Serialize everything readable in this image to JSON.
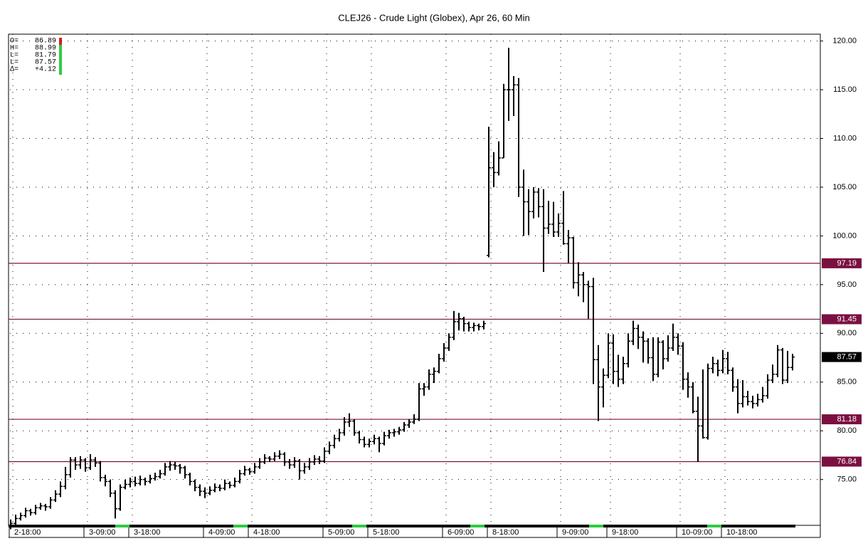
{
  "chart_data": {
    "type": "ohlc",
    "title": "CLEJ26 - Crude Light (Globex), Apr 26, 60 Min",
    "info": [
      {
        "label": "O=",
        "value": "86.89"
      },
      {
        "label": "H=",
        "value": "88.99"
      },
      {
        "label": "L=",
        "value": "81.79"
      },
      {
        "label": "L=",
        "value": "87.57"
      },
      {
        "label": "Δ=",
        "value": "+4.12"
      }
    ],
    "ylim": [
      70.3,
      120.7
    ],
    "yticks": [
      {
        "value": 120,
        "label": "120.00"
      },
      {
        "value": 115,
        "label": "115.00"
      },
      {
        "value": 110,
        "label": "110.00"
      },
      {
        "value": 105,
        "label": "105.00"
      },
      {
        "value": 100,
        "label": "100.00"
      },
      {
        "value": 95,
        "label": "95.00"
      },
      {
        "value": 90,
        "label": "90.00"
      },
      {
        "value": 85,
        "label": "85.00"
      },
      {
        "value": 80,
        "label": "80.00"
      },
      {
        "value": 75,
        "label": "75.00"
      }
    ],
    "grid": true,
    "color": "#000000",
    "levels": [
      97.19,
      91.45,
      81.18,
      76.84
    ],
    "level_color": "#7b1040",
    "last_price": 87.57,
    "categories": [
      "2-18:00",
      null,
      null,
      null,
      null,
      null,
      null,
      null,
      null,
      null,
      null,
      null,
      null,
      null,
      null,
      "3-09:00",
      null,
      null,
      null,
      null,
      null,
      null,
      null,
      null,
      "3-18:00",
      null,
      null,
      null,
      null,
      null,
      null,
      null,
      null,
      null,
      null,
      null,
      null,
      null,
      null,
      "4-09:00",
      null,
      null,
      null,
      null,
      null,
      null,
      null,
      null,
      "4-18:00",
      null,
      null,
      null,
      null,
      null,
      null,
      null,
      null,
      null,
      null,
      null,
      null,
      null,
      null,
      "5-09:00",
      null,
      null,
      null,
      null,
      null,
      null,
      null,
      null,
      "5-18:00",
      null,
      null,
      null,
      null,
      null,
      null,
      null,
      null,
      null,
      null,
      null,
      null,
      null,
      null,
      "6-09:00",
      null,
      null,
      null,
      null,
      null,
      null,
      null,
      null,
      "8-18:00",
      null,
      null,
      null,
      null,
      null,
      null,
      null,
      null,
      null,
      null,
      null,
      null,
      null,
      "9-09:00",
      null,
      null,
      null,
      null,
      null,
      null,
      null,
      null,
      null,
      "9-18:00",
      null,
      null,
      null,
      null,
      null,
      null,
      null,
      null,
      null,
      null,
      null,
      null,
      null,
      "10-09:00",
      null,
      null,
      null,
      null,
      null,
      null,
      null,
      null,
      "10-18:00",
      null,
      null,
      null,
      null,
      null,
      null,
      null,
      null,
      null,
      null,
      null,
      null,
      null,
      null
    ],
    "values": [
      [
        70.2,
        70.9,
        69.9,
        70.5
      ],
      [
        70.5,
        71.4,
        70.3,
        71
      ],
      [
        71,
        71.6,
        70.8,
        71.3
      ],
      [
        71.3,
        72.1,
        71.1,
        71.8
      ],
      [
        71.8,
        72,
        71.3,
        71.6
      ],
      [
        71.6,
        72.4,
        71.4,
        72.1
      ],
      [
        72.1,
        72.6,
        71.9,
        72.3
      ],
      [
        72.3,
        72.5,
        71.8,
        72.2
      ],
      [
        72.2,
        73.2,
        72,
        72.9
      ],
      [
        72.9,
        73.9,
        72.7,
        73.5
      ],
      [
        73.5,
        74.8,
        73.2,
        74.3
      ],
      [
        74.3,
        76.3,
        74,
        75.5
      ],
      [
        75.5,
        77.3,
        75.2,
        77
      ],
      [
        77,
        77.3,
        76,
        76.5
      ],
      [
        76.5,
        77.4,
        76.1,
        77
      ],
      [
        77,
        77.2,
        75.8,
        76.2
      ],
      [
        76.2,
        77.6,
        76,
        77
      ],
      [
        77,
        77.3,
        76.3,
        76.7
      ],
      [
        76.7,
        76.9,
        74.8,
        75.2
      ],
      [
        75.2,
        75.5,
        74.3,
        74.8
      ],
      [
        74.8,
        75,
        73.2,
        73.6
      ],
      [
        73.6,
        73.9,
        71,
        72
      ],
      [
        72,
        74.5,
        71.8,
        74.2
      ],
      [
        74.2,
        75,
        74,
        74.5
      ],
      [
        74.5,
        75.2,
        74.2,
        74.8
      ],
      [
        74.8,
        75.3,
        74.3,
        74.6
      ],
      [
        74.6,
        75.4,
        74.4,
        75
      ],
      [
        75,
        75.2,
        74.4,
        74.8
      ],
      [
        74.8,
        75.5,
        74.6,
        75.1
      ],
      [
        75.1,
        75.7,
        74.9,
        75.3
      ],
      [
        75.3,
        76,
        75.1,
        75.6
      ],
      [
        75.6,
        76.7,
        75.4,
        76.3
      ],
      [
        76.3,
        76.9,
        75.9,
        76.5
      ],
      [
        76.5,
        76.8,
        76,
        76.4
      ],
      [
        76.4,
        76.6,
        75.6,
        76.2
      ],
      [
        76.2,
        76.4,
        75.1,
        75.5
      ],
      [
        75.5,
        75.7,
        74.4,
        74.8
      ],
      [
        74.8,
        75,
        73.8,
        74.2
      ],
      [
        74.2,
        74.5,
        73.3,
        73.8
      ],
      [
        73.8,
        74.2,
        73.1,
        73.6
      ],
      [
        73.6,
        74.3,
        73.4,
        73.9
      ],
      [
        73.9,
        74.6,
        73.7,
        74.2
      ],
      [
        74.2,
        74.5,
        73.8,
        74.1
      ],
      [
        74.1,
        75,
        73.9,
        74.6
      ],
      [
        74.6,
        74.8,
        74.1,
        74.4
      ],
      [
        74.4,
        75.2,
        74.2,
        74.8
      ],
      [
        74.8,
        76,
        74.6,
        75.6
      ],
      [
        75.6,
        76.4,
        75.4,
        76
      ],
      [
        76,
        76.2,
        75.5,
        75.8
      ],
      [
        75.8,
        76.7,
        75.6,
        76.3
      ],
      [
        76.3,
        77.2,
        76.1,
        76.8
      ],
      [
        76.8,
        77.6,
        76.6,
        77.2
      ],
      [
        77.2,
        77.4,
        76.8,
        77.1
      ],
      [
        77.1,
        77.8,
        76.9,
        77.4
      ],
      [
        77.4,
        78,
        77.1,
        77.6
      ],
      [
        77.6,
        77.8,
        76.4,
        76.8
      ],
      [
        76.8,
        77.1,
        76.1,
        76.5
      ],
      [
        76.5,
        77.3,
        76.2,
        76.9
      ],
      [
        76.9,
        77.1,
        75,
        75.9
      ],
      [
        75.9,
        76.7,
        75.6,
        76.3
      ],
      [
        76.3,
        77.2,
        76,
        76.8
      ],
      [
        76.8,
        77.5,
        76.5,
        77.1
      ],
      [
        77.1,
        77.4,
        76.6,
        76.9
      ],
      [
        76.9,
        78.3,
        76.7,
        77.9
      ],
      [
        77.9,
        78.9,
        77.6,
        78.5
      ],
      [
        78.5,
        79.6,
        78.2,
        79.2
      ],
      [
        79.2,
        80.2,
        78.9,
        79.8
      ],
      [
        79.8,
        81.4,
        79.5,
        80.9
      ],
      [
        80.9,
        81.8,
        80.4,
        81
      ],
      [
        81,
        81.2,
        79.5,
        79.8
      ],
      [
        79.8,
        80,
        78.7,
        79.1
      ],
      [
        79.1,
        79.4,
        78.3,
        78.6
      ],
      [
        78.6,
        79.2,
        78.3,
        78.9
      ],
      [
        78.9,
        79.6,
        78.6,
        79.2
      ],
      [
        79.2,
        79.4,
        77.8,
        78.7
      ],
      [
        78.7,
        79.9,
        78.5,
        79.5
      ],
      [
        79.5,
        80.1,
        79.2,
        79.8
      ],
      [
        79.8,
        80.2,
        79.4,
        79.9
      ],
      [
        79.9,
        80.4,
        79.6,
        80.1
      ],
      [
        80.1,
        80.9,
        79.9,
        80.6
      ],
      [
        80.6,
        81.2,
        80.3,
        80.9
      ],
      [
        80.9,
        81.7,
        80.7,
        81.2
      ],
      [
        81.2,
        84.9,
        81,
        84.3
      ],
      [
        84.3,
        84.9,
        83.6,
        84.5
      ],
      [
        84.5,
        86.3,
        84.2,
        85.8
      ],
      [
        85.8,
        86.5,
        84.9,
        86.1
      ],
      [
        86.1,
        87.9,
        85.9,
        87.4
      ],
      [
        87.4,
        89,
        87.1,
        88.5
      ],
      [
        88.5,
        90,
        88.2,
        89.6
      ],
      [
        89.6,
        92.3,
        89.3,
        91.2
      ],
      [
        91.2,
        92.1,
        90.3,
        91.5
      ],
      [
        91.5,
        91.7,
        90.2,
        91
      ],
      [
        91,
        91.2,
        90.2,
        90.6
      ],
      [
        90.6,
        91.1,
        90.2,
        90.8
      ],
      [
        90.8,
        91,
        90.3,
        90.7
      ],
      [
        90.7,
        91.3,
        90.4,
        91
      ],
      [
        98,
        111.2,
        97.8,
        107
      ],
      [
        107,
        108.6,
        105,
        106.5
      ],
      [
        106.5,
        109.7,
        106.2,
        108
      ],
      [
        108,
        115.6,
        108,
        115
      ],
      [
        115,
        119.3,
        111.8,
        115
      ],
      [
        115,
        116.4,
        112.3,
        115.5
      ],
      [
        115.5,
        116.2,
        104,
        105
      ],
      [
        105,
        106.8,
        100,
        103.5
      ],
      [
        103.5,
        104.8,
        100.1,
        102.5
      ],
      [
        102.5,
        105,
        101.8,
        104.5
      ],
      [
        104.5,
        104.9,
        101.9,
        103
      ],
      [
        103,
        104.8,
        96.3,
        100.8
      ],
      [
        100.8,
        103.6,
        100.2,
        101.2
      ],
      [
        101.2,
        103.5,
        99.9,
        100.4
      ],
      [
        100.4,
        102.3,
        99.9,
        101.3
      ],
      [
        101.3,
        104.6,
        99.1,
        99.2
      ],
      [
        99.2,
        100.6,
        97.2,
        99.8
      ],
      [
        99.8,
        99.9,
        94.6,
        95.2
      ],
      [
        95.2,
        97.3,
        93.8,
        96
      ],
      [
        96,
        96.3,
        93.2,
        95
      ],
      [
        95,
        95.4,
        91.5,
        94.8
      ],
      [
        94.8,
        95.7,
        84.8,
        87.3
      ],
      [
        87.3,
        88.8,
        81,
        84.5
      ],
      [
        84.5,
        86.4,
        82.4,
        85.7
      ],
      [
        85.7,
        90,
        85.4,
        89
      ],
      [
        89,
        89.9,
        84.8,
        86.1
      ],
      [
        86.1,
        87.8,
        84.5,
        85.3
      ],
      [
        85.3,
        87.6,
        84.8,
        86.9
      ],
      [
        86.9,
        90,
        86.5,
        89.2
      ],
      [
        89.2,
        91.3,
        88.8,
        90.5
      ],
      [
        90.5,
        90.9,
        88.4,
        89.6
      ],
      [
        89.6,
        90.2,
        87,
        89.2
      ],
      [
        89.2,
        89.5,
        86.9,
        87.5
      ],
      [
        87.5,
        89.6,
        85.1,
        85.8
      ],
      [
        85.8,
        89.6,
        85.5,
        89.1
      ],
      [
        89.1,
        89.3,
        86.3,
        87.4
      ],
      [
        87.4,
        89.8,
        87.1,
        88.5
      ],
      [
        88.5,
        91,
        88.2,
        89.6
      ],
      [
        89.6,
        90,
        87.8,
        88.7
      ],
      [
        88.7,
        89.1,
        84.2,
        85.3
      ],
      [
        85.3,
        86,
        83.4,
        84.5
      ],
      [
        84.5,
        85,
        81.8,
        82
      ],
      [
        82,
        83.5,
        76.8,
        80.5
      ],
      [
        80.5,
        86.3,
        79.2,
        79.3
      ],
      [
        79.3,
        86.9,
        79.1,
        86.4
      ],
      [
        86.4,
        87.6,
        85.9,
        86.9
      ],
      [
        86.9,
        87.3,
        85.6,
        86.2
      ],
      [
        86.2,
        88.3,
        85.9,
        87.4
      ],
      [
        87.4,
        88.1,
        85.8,
        86.2
      ],
      [
        86.2,
        86.5,
        84,
        84.5
      ],
      [
        84.5,
        85.3,
        81.8,
        82.8
      ],
      [
        82.8,
        85.2,
        82.4,
        83.5
      ],
      [
        83.5,
        84.1,
        82.6,
        83
      ],
      [
        83,
        83.6,
        82.3,
        82.8
      ],
      [
        82.8,
        83.8,
        82.5,
        83.2
      ],
      [
        83.2,
        84.5,
        82.9,
        83.6
      ],
      [
        83.6,
        85.8,
        83.3,
        85.2
      ],
      [
        85.2,
        86.8,
        84.9,
        85.8
      ],
      [
        85.8,
        88.8,
        85.5,
        88.3
      ],
      [
        88.3,
        88.5,
        84.8,
        85.2
      ],
      [
        85.2,
        88.2,
        84.9,
        86.5
      ],
      [
        86.5,
        87.9,
        86.2,
        87.57
      ]
    ]
  }
}
